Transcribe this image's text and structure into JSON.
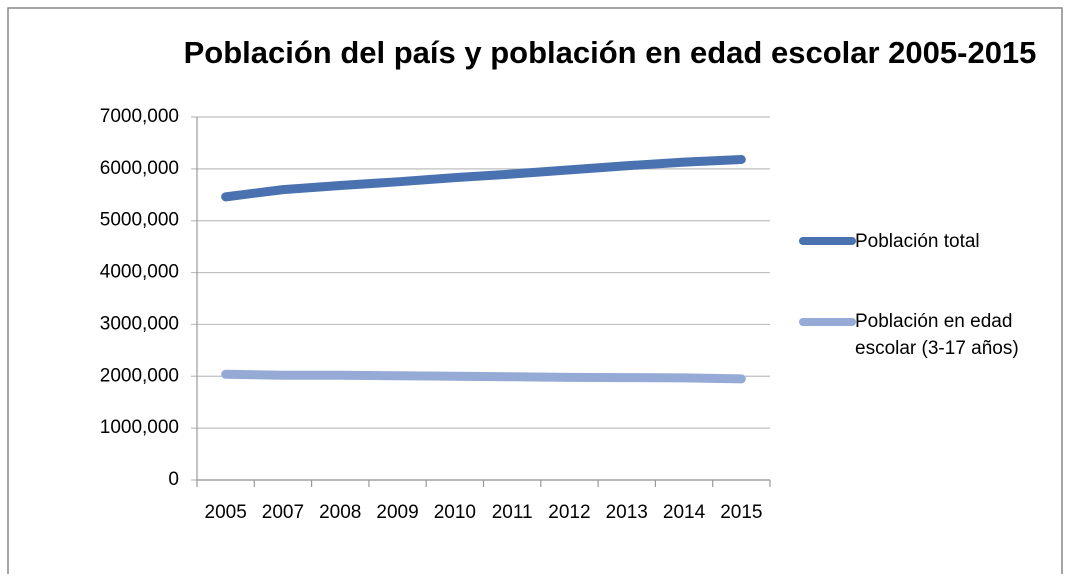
{
  "chart_data": {
    "type": "line",
    "title": "Población del país y población en edad escolar 2005-2015",
    "categories": [
      "2005",
      "2007",
      "2008",
      "2009",
      "2010",
      "2011",
      "2012",
      "2013",
      "2014",
      "2015"
    ],
    "series": [
      {
        "name": "Población total",
        "color": "#4a72b0",
        "values": [
          5460,
          5600,
          5680,
          5750,
          5830,
          5900,
          5980,
          6060,
          6130,
          6180
        ]
      },
      {
        "name": "Población en edad escolar (3-17 años)",
        "color": "#95abd5",
        "values": [
          2040,
          2020,
          2020,
          2010,
          2000,
          1990,
          1980,
          1975,
          1970,
          1950
        ]
      }
    ],
    "ylim": [
      0,
      7000
    ],
    "yticks": [
      0,
      {
        "value": 1000,
        "label": "1000,000"
      },
      {
        "value": 2000,
        "label": "2000,000"
      },
      {
        "value": 3000,
        "label": "3000,000"
      },
      {
        "value": 4000,
        "label": "4000,000"
      },
      {
        "value": 5000,
        "label": "5000,000"
      },
      {
        "value": 6000,
        "label": "6000,000"
      },
      {
        "value": 7000,
        "label": "7000,000"
      }
    ],
    "grid": true,
    "legend": "right"
  }
}
